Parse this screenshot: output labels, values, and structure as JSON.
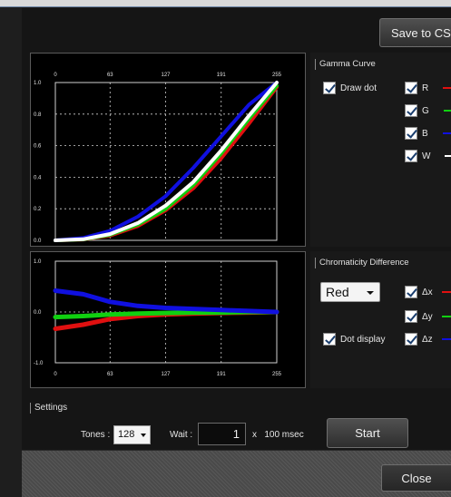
{
  "toolbar": {
    "save_label": "Save to CSV"
  },
  "gamma": {
    "title": "Gamma Curve",
    "x_ticks": [
      "0",
      "63",
      "127",
      "191",
      "255"
    ],
    "y_ticks": [
      "1.0",
      "0.8",
      "0.6",
      "0.4",
      "0.2",
      "0.0"
    ],
    "draw_dot_label": "Draw dot",
    "channels": [
      {
        "label": "R",
        "color": "#e01010"
      },
      {
        "label": "G",
        "color": "#10d010"
      },
      {
        "label": "B",
        "color": "#1010e0"
      },
      {
        "label": "W",
        "color": "#ffffff"
      }
    ]
  },
  "chroma": {
    "title": "Chromaticity Difference",
    "x_ticks": [
      "0",
      "63",
      "127",
      "191",
      "255"
    ],
    "y_ticks": [
      "1.0",
      "0.0",
      "-1.0"
    ],
    "selected_channel": "Red",
    "dot_display_label": "Dot display",
    "deltas": [
      {
        "label": "Δx",
        "color": "#e01010"
      },
      {
        "label": "Δy",
        "color": "#10d010"
      },
      {
        "label": "Δz",
        "color": "#1010e0"
      }
    ]
  },
  "settings": {
    "title": "Settings",
    "tones_label": "Tones :",
    "tones_value": "128",
    "wait_label": "Wait :",
    "wait_value": "1",
    "wait_unit": "x   100 msec",
    "start_label": "Start"
  },
  "footer": {
    "close_label": "Close"
  },
  "chart_data": [
    {
      "type": "line",
      "title": "Gamma Curve",
      "x": [
        0,
        32,
        63,
        95,
        127,
        159,
        191,
        223,
        255
      ],
      "xlim": [
        0,
        255
      ],
      "ylim": [
        0,
        1
      ],
      "series": [
        {
          "name": "R",
          "color": "#e01010",
          "values": [
            0,
            0.005,
            0.03,
            0.09,
            0.19,
            0.33,
            0.52,
            0.74,
            0.97
          ]
        },
        {
          "name": "G",
          "color": "#10d010",
          "values": [
            0,
            0.006,
            0.035,
            0.1,
            0.2,
            0.35,
            0.55,
            0.77,
            0.98
          ]
        },
        {
          "name": "B",
          "color": "#1010e0",
          "values": [
            0,
            0.015,
            0.06,
            0.15,
            0.28,
            0.46,
            0.66,
            0.86,
            1.0
          ]
        },
        {
          "name": "W",
          "color": "#ffffff",
          "values": [
            0,
            0.007,
            0.04,
            0.11,
            0.22,
            0.37,
            0.57,
            0.79,
            1.0
          ]
        }
      ]
    },
    {
      "type": "line",
      "title": "Chromaticity Difference",
      "x": [
        0,
        32,
        63,
        95,
        127,
        159,
        191,
        223,
        255
      ],
      "xlim": [
        0,
        255
      ],
      "ylim": [
        -1,
        1
      ],
      "series": [
        {
          "name": "Δx",
          "color": "#e01010",
          "values": [
            -0.33,
            -0.25,
            -0.14,
            -0.08,
            -0.05,
            -0.03,
            -0.02,
            -0.01,
            0.0
          ]
        },
        {
          "name": "Δy",
          "color": "#10d010",
          "values": [
            -0.1,
            -0.08,
            -0.05,
            -0.03,
            -0.02,
            -0.01,
            -0.01,
            0.0,
            0.0
          ]
        },
        {
          "name": "Δz",
          "color": "#1010e0",
          "values": [
            0.42,
            0.35,
            0.2,
            0.12,
            0.08,
            0.06,
            0.04,
            0.02,
            0.0
          ]
        }
      ]
    }
  ]
}
